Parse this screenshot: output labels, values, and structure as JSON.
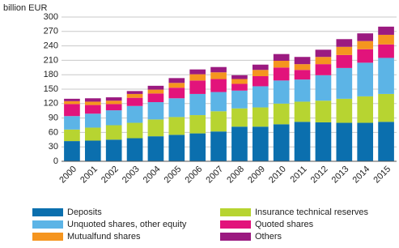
{
  "chart_data": {
    "type": "stacked_bar",
    "y_label": "billion EUR",
    "categories": [
      "2000",
      "2001",
      "2002",
      "2003",
      "2004",
      "2005",
      "2006",
      "2007",
      "2008",
      "2009",
      "2010",
      "2011",
      "2012",
      "2013",
      "2014",
      "2015"
    ],
    "series": [
      {
        "name": "Deposits",
        "color": "#0b6fae",
        "values": [
          42,
          43,
          45,
          48,
          52,
          55,
          58,
          62,
          72,
          72,
          77,
          82,
          81,
          80,
          80,
          82
        ]
      },
      {
        "name": "Insurance technical reserves",
        "color": "#b7d431",
        "values": [
          24,
          27,
          30,
          32,
          35,
          37,
          38,
          42,
          38,
          40,
          43,
          42,
          45,
          50,
          55,
          58
        ]
      },
      {
        "name": "Unquoted shares, other equity",
        "color": "#5cb4e6",
        "values": [
          28,
          29,
          31,
          35,
          36,
          39,
          44,
          40,
          37,
          44,
          48,
          46,
          53,
          64,
          70,
          75
        ]
      },
      {
        "name": "Quoted shares",
        "color": "#e2137b",
        "values": [
          25,
          18,
          13,
          17,
          18,
          22,
          28,
          27,
          14,
          21,
          27,
          20,
          23,
          27,
          28,
          28
        ]
      },
      {
        "name": "Mutualfund shares",
        "color": "#f5951f",
        "values": [
          6,
          7,
          7,
          8,
          8,
          10,
          13,
          14,
          10,
          13,
          14,
          12,
          15,
          17,
          17,
          20
        ]
      },
      {
        "name": "Others",
        "color": "#9b1a80",
        "values": [
          5,
          7,
          7,
          6,
          8,
          10,
          10,
          11,
          8,
          11,
          14,
          15,
          15,
          16,
          16,
          17
        ]
      }
    ],
    "ylim": [
      0,
      300
    ],
    "yticks": [
      0,
      30,
      60,
      90,
      120,
      150,
      180,
      210,
      240,
      270,
      300
    ],
    "grid": true
  }
}
